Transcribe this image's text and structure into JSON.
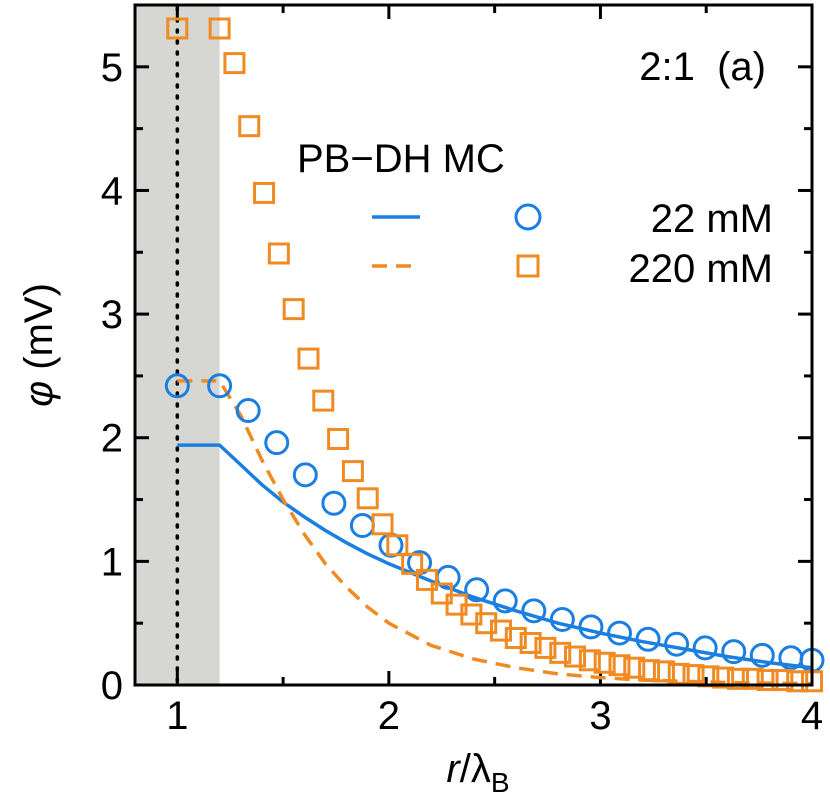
{
  "chart_data": {
    "type": "line",
    "title": "",
    "annotation": "2:1  (a)",
    "xlabel": {
      "italic": "r",
      "main": "/λ",
      "sub": "B"
    },
    "ylabel": {
      "symbol": "φ",
      "rest": " (mV)"
    },
    "xlim": [
      0.8,
      4.0
    ],
    "ylim": [
      0,
      5.5
    ],
    "xticks": [
      1,
      2,
      3,
      4
    ],
    "xtick_labels": [
      "1",
      "2",
      "3",
      "4"
    ],
    "yticks": [
      0,
      1,
      2,
      3,
      4,
      5
    ],
    "ytick_labels": [
      "0",
      "1",
      "2",
      "3",
      "4",
      "5"
    ],
    "shaded_region": [
      0.8,
      1.2
    ],
    "vertical_dotted_line": 1.0,
    "legend": {
      "header": "PB−DH MC",
      "entries": [
        {
          "label": "22 mM",
          "line": "solid",
          "marker": "circle",
          "color": "#1a7fe0"
        },
        {
          "label": "220 mM",
          "line": "dashed",
          "marker": "square",
          "color": "#f08a22"
        }
      ]
    },
    "colors": {
      "blue": "#1a7fe0",
      "orange": "#f08a22",
      "shade": "#d6d7d2"
    },
    "series": [
      {
        "name": "22 mM PB-DH",
        "style": "solid",
        "color": "#1a7fe0",
        "x": [
          1.0,
          1.2,
          1.3,
          1.4,
          1.5,
          1.6,
          1.7,
          1.8,
          1.9,
          2.0,
          2.2,
          2.4,
          2.6,
          2.8,
          3.0,
          3.2,
          3.4,
          3.6,
          3.8,
          4.0
        ],
        "y": [
          1.94,
          1.94,
          1.78,
          1.62,
          1.48,
          1.36,
          1.25,
          1.15,
          1.06,
          0.98,
          0.84,
          0.71,
          0.6,
          0.5,
          0.42,
          0.35,
          0.29,
          0.23,
          0.18,
          0.14
        ]
      },
      {
        "name": "220 mM PB-DH",
        "style": "dashed",
        "color": "#f08a22",
        "x": [
          1.0,
          1.2,
          1.3,
          1.4,
          1.5,
          1.6,
          1.7,
          1.8,
          1.9,
          2.0,
          2.2,
          2.4,
          2.6,
          2.8,
          3.0,
          3.2,
          3.4,
          3.6,
          3.8,
          4.0
        ],
        "y": [
          2.46,
          2.46,
          2.18,
          1.82,
          1.5,
          1.22,
          0.98,
          0.79,
          0.63,
          0.5,
          0.32,
          0.21,
          0.14,
          0.09,
          0.06,
          0.04,
          0.03,
          0.02,
          0.015,
          0.01
        ]
      },
      {
        "name": "22 mM MC",
        "style": "circle",
        "color": "#1a7fe0",
        "x": [
          1.0,
          1.2,
          1.335,
          1.47,
          1.605,
          1.74,
          1.875,
          2.01,
          2.145,
          2.28,
          2.415,
          2.55,
          2.685,
          2.82,
          2.955,
          3.09,
          3.225,
          3.36,
          3.495,
          3.63,
          3.765,
          3.9,
          4.0
        ],
        "y": [
          2.42,
          2.42,
          2.22,
          1.96,
          1.7,
          1.47,
          1.29,
          1.13,
          0.99,
          0.87,
          0.77,
          0.68,
          0.6,
          0.53,
          0.47,
          0.42,
          0.37,
          0.33,
          0.3,
          0.27,
          0.24,
          0.22,
          0.2
        ]
      },
      {
        "name": "220 mM MC",
        "style": "square",
        "color": "#f08a22",
        "x": [
          1.0,
          1.2,
          1.27,
          1.34,
          1.41,
          1.48,
          1.55,
          1.62,
          1.69,
          1.76,
          1.83,
          1.9,
          1.97,
          2.04,
          2.11,
          2.18,
          2.25,
          2.32,
          2.39,
          2.46,
          2.53,
          2.6,
          2.67,
          2.74,
          2.81,
          2.88,
          2.95,
          3.02,
          3.09,
          3.16,
          3.23,
          3.3,
          3.37,
          3.44,
          3.51,
          3.58,
          3.65,
          3.72,
          3.79,
          3.86,
          3.93,
          4.0
        ],
        "y": [
          5.31,
          5.31,
          5.03,
          4.52,
          3.98,
          3.49,
          3.04,
          2.64,
          2.3,
          1.99,
          1.73,
          1.51,
          1.3,
          1.13,
          0.98,
          0.85,
          0.74,
          0.65,
          0.57,
          0.5,
          0.44,
          0.38,
          0.34,
          0.3,
          0.26,
          0.23,
          0.2,
          0.18,
          0.16,
          0.14,
          0.12,
          0.11,
          0.09,
          0.08,
          0.07,
          0.06,
          0.05,
          0.05,
          0.04,
          0.04,
          0.03,
          0.03
        ]
      }
    ]
  }
}
